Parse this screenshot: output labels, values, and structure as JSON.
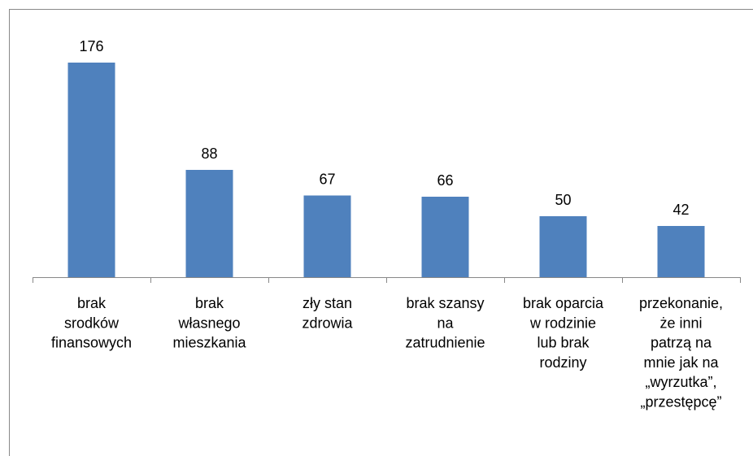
{
  "chart_data": {
    "type": "bar",
    "categories": [
      "brak\nsrodków\nfinansowych",
      "brak\nwłasnego\nmieszkania",
      "zły stan\nzdrowia",
      "brak szansy\nna\nzatrudnienie",
      "brak oparcia\nw rodzinie\nlub brak\nrodziny",
      "przekonanie,\nże inni\npatrzą na\nmnie jak na\n„wyrzutka”,\n„przestępcę”"
    ],
    "values": [
      176,
      88,
      67,
      66,
      50,
      42
    ],
    "color": "#4f81bd"
  }
}
